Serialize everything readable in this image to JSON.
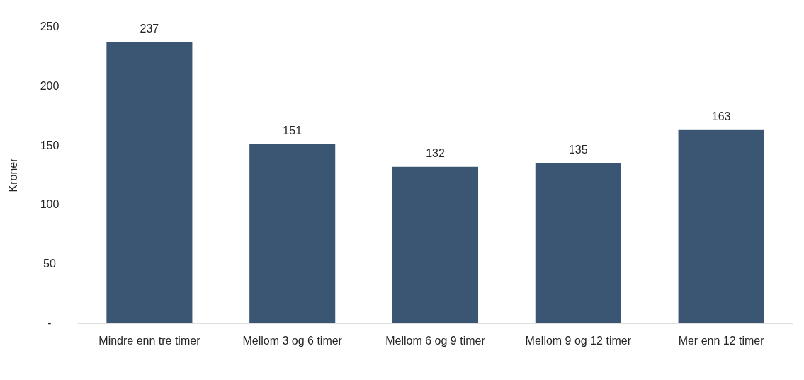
{
  "chart_data": {
    "type": "bar",
    "categories": [
      "Mindre enn tre timer",
      "Mellom 3 og 6 timer",
      "Mellom 6 og 9 timer",
      "Mellom 9 og 12 timer",
      "Mer enn 12 timer"
    ],
    "values": [
      237,
      151,
      132,
      135,
      163
    ],
    "color": "#3b5672",
    "ylabel": "Kroner",
    "ylim": [
      0,
      250
    ],
    "yticks": [
      {
        "value": 0,
        "label": "-"
      },
      50,
      100,
      150,
      200,
      250
    ],
    "data_labels": true,
    "grid": false
  }
}
